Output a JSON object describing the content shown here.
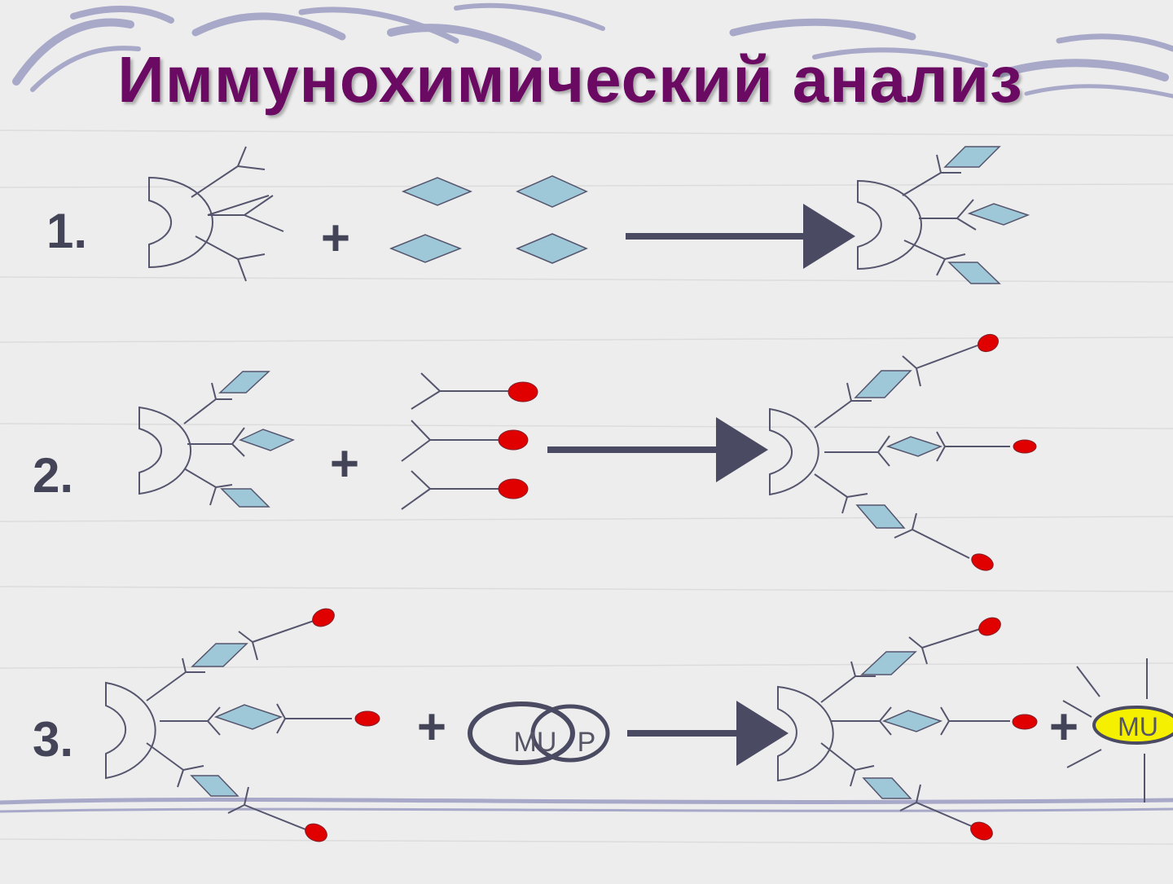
{
  "title": "Иммунохимический анализ",
  "steps": [
    {
      "label": "1."
    },
    {
      "label": "2."
    },
    {
      "label": "3."
    }
  ],
  "operators": {
    "plus": "+"
  },
  "enzyme_conjugate": {
    "left_text": "MU",
    "right_text": "P"
  },
  "product": {
    "text": "MU"
  },
  "colors": {
    "title": "#6b0a62",
    "antigen_fill": "#9ec8d8",
    "label_fill": "#e00000",
    "line": "#55556e",
    "arrow": "#4a4a62",
    "product_fill": "#f4f000",
    "decor_wave": "#a8a8c8"
  }
}
